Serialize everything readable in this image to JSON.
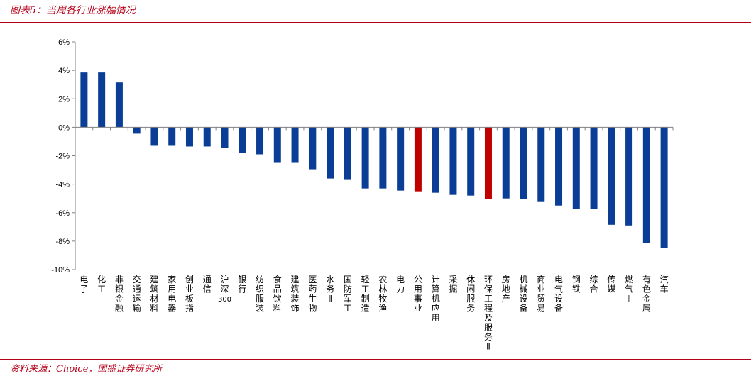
{
  "header": {
    "title": "图表5：当周各行业涨幅情况"
  },
  "footer": {
    "source": "资料来源：Choice，国盛证券研究所"
  },
  "colors": {
    "accent": "#b5001a",
    "bar_default": "#0a3e96",
    "bar_highlight": "#c00000"
  },
  "chart_data": {
    "type": "bar",
    "ylim": [
      -10,
      6
    ],
    "yticks": [
      6,
      4,
      2,
      0,
      -2,
      -4,
      -6,
      -8,
      -10
    ],
    "ytick_format": "percent",
    "grid": false,
    "categories": [
      "电子",
      "化工",
      "非银金融",
      "交通运输",
      "建筑材料",
      "家用电器",
      "创业板指",
      "通信",
      "沪深300",
      "银行",
      "纺织服装",
      "食品饮料",
      "建筑装饰",
      "医药生物",
      "水务Ⅱ",
      "国防军工",
      "轻工制造",
      "农林牧渔",
      "电力",
      "公用事业",
      "计算机应用",
      "采掘",
      "休闲服务",
      "环保工程及服务Ⅱ",
      "房地产",
      "机械设备",
      "商业贸易",
      "电气设备",
      "钢铁",
      "综合",
      "传媒",
      "燃气Ⅱ",
      "有色金属",
      "汽车"
    ],
    "values": [
      3.85,
      3.85,
      3.15,
      -0.45,
      -1.3,
      -1.3,
      -1.35,
      -1.35,
      -1.45,
      -1.8,
      -1.9,
      -2.5,
      -2.5,
      -2.95,
      -3.6,
      -3.7,
      -4.3,
      -4.3,
      -4.45,
      -4.5,
      -4.6,
      -4.75,
      -4.8,
      -5.05,
      -5.0,
      -5.05,
      -5.25,
      -5.5,
      -5.75,
      -5.75,
      -6.85,
      -6.9,
      -8.15,
      -8.5
    ],
    "highlighted": [
      "公用事业",
      "环保工程及服务Ⅱ"
    ]
  }
}
